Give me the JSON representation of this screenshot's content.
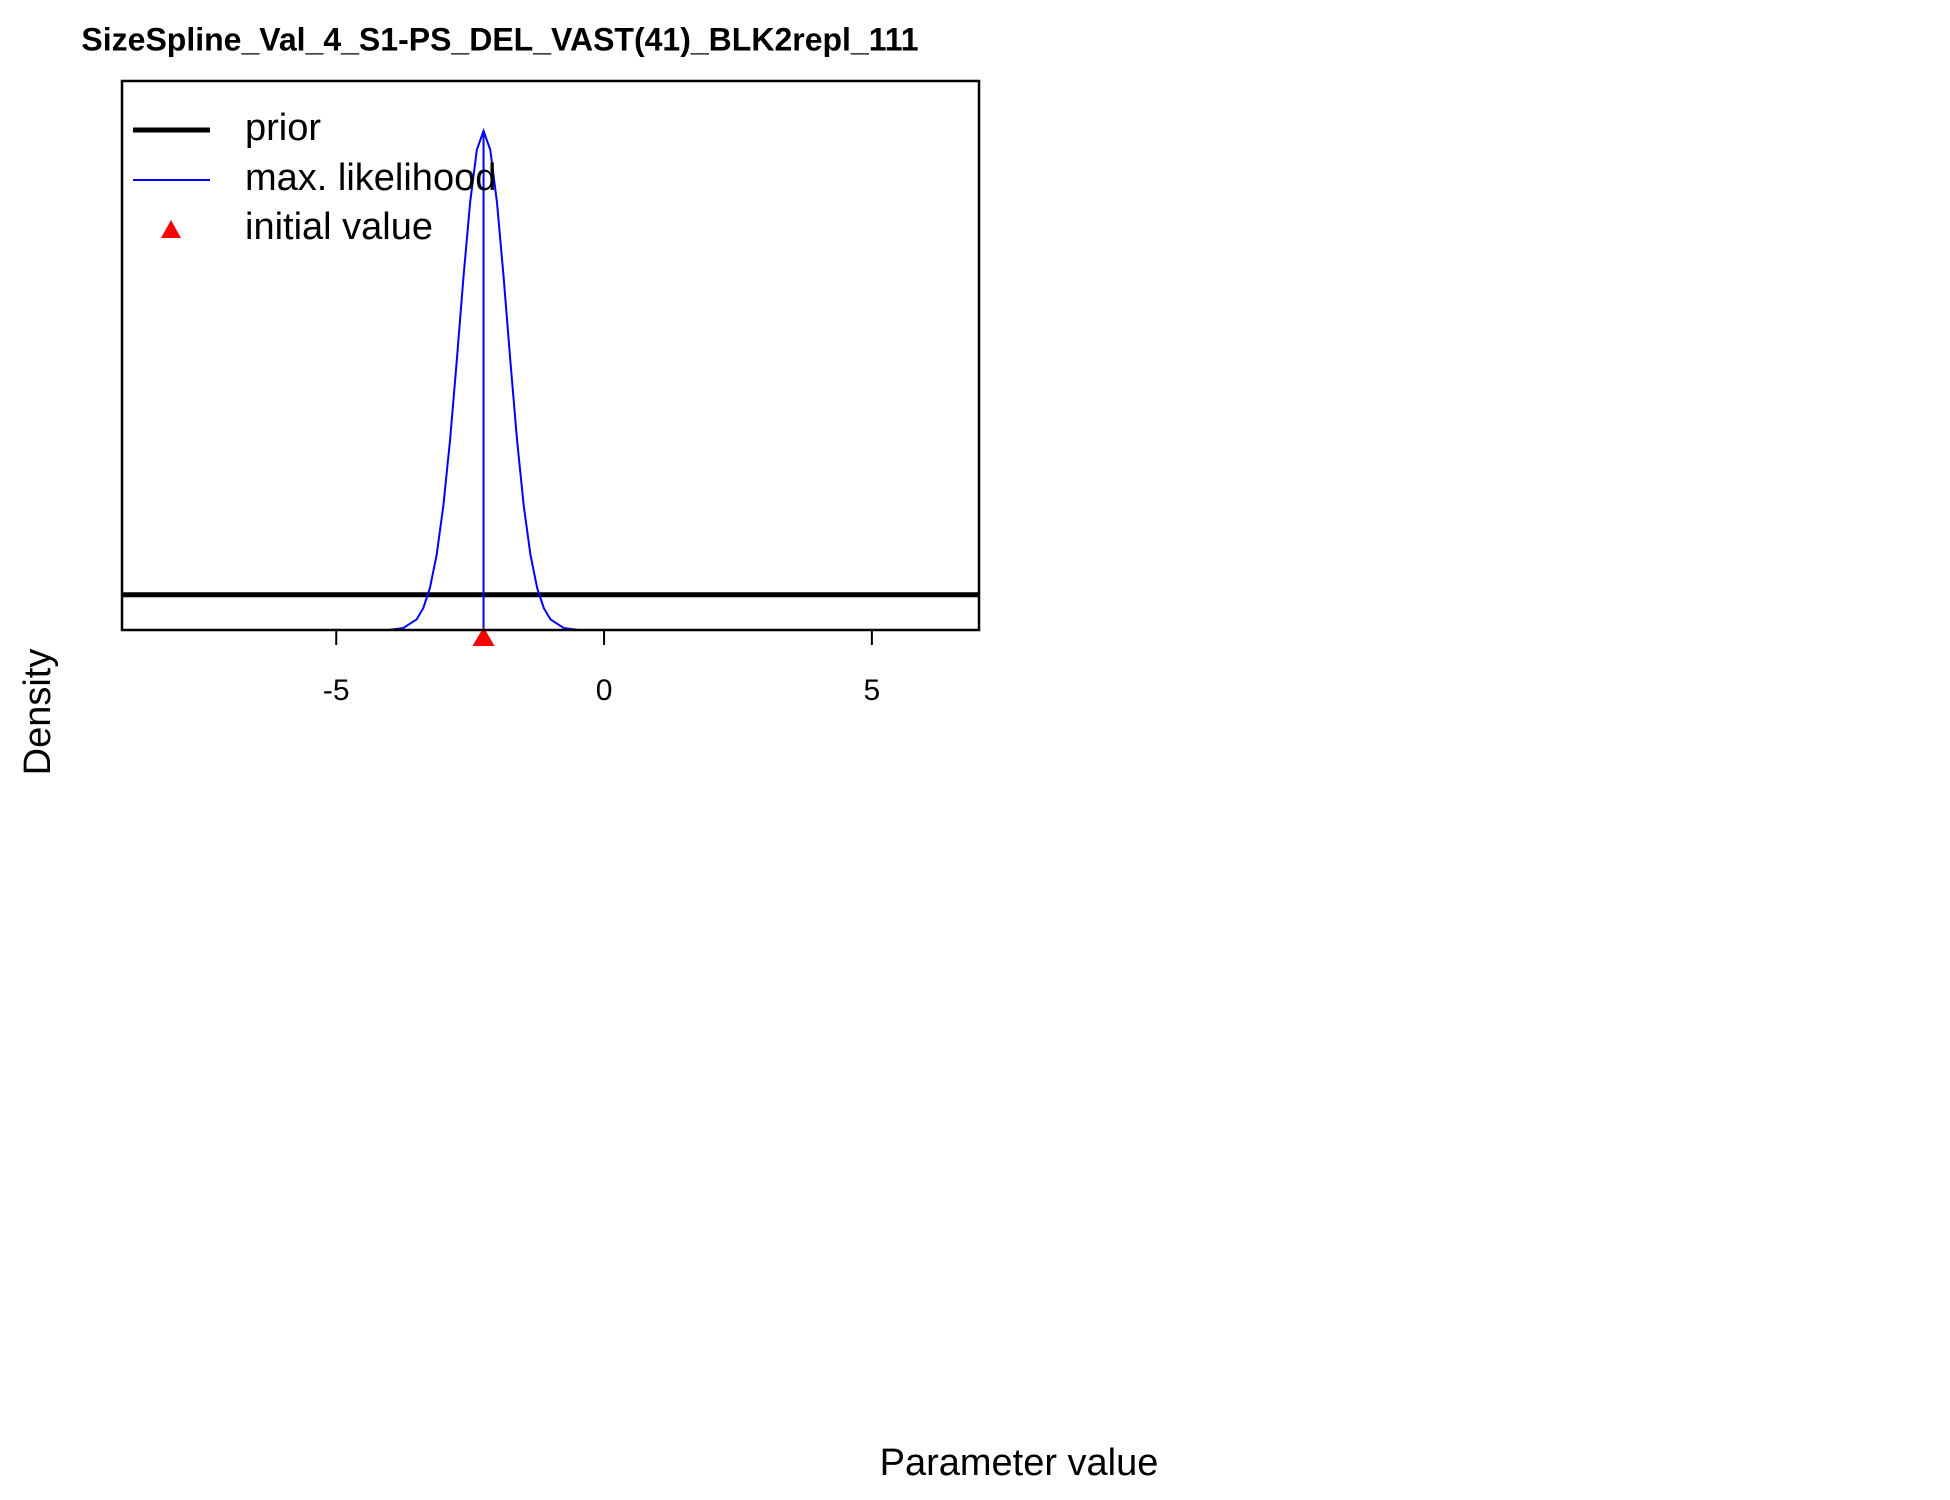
{
  "chart_data": {
    "type": "line",
    "title": "SizeSpline_Val_4_S1-PS_DEL_VAST(41)_BLK2repl_111",
    "xlabel": "Parameter value",
    "ylabel": "Density",
    "xlim": [
      -9,
      7
    ],
    "xticks": [
      -5,
      0,
      5
    ],
    "ylim": [
      0,
      0.975
    ],
    "series": [
      {
        "name": "prior",
        "color": "#000000",
        "width": 5,
        "x": [
          -9,
          7
        ],
        "values": [
          0.0625,
          0.0625
        ]
      },
      {
        "name": "max. likelihood",
        "color": "#0000ff",
        "width": 2,
        "x": [
          -4,
          -3.75,
          -3.5,
          -3.375,
          -3.25,
          -3.125,
          -3,
          -2.875,
          -2.75,
          -2.625,
          -2.5,
          -2.375,
          -2.25,
          -2.125,
          -2,
          -1.875,
          -1.75,
          -1.625,
          -1.5,
          -1.375,
          -1.25,
          -1.125,
          -1,
          -0.75,
          -0.5
        ],
        "values": [
          0.00046,
          0.0034,
          0.0187,
          0.0389,
          0.0751,
          0.1339,
          0.2211,
          0.3378,
          0.4783,
          0.6265,
          0.7599,
          0.8529,
          0.8865,
          0.8529,
          0.7599,
          0.6265,
          0.4783,
          0.3378,
          0.2211,
          0.1339,
          0.0751,
          0.0389,
          0.0187,
          0.0034,
          0.00046
        ]
      }
    ],
    "mle_x": -2.25,
    "initial_value": {
      "name": "initial value",
      "color": "#ff0000",
      "x": -2.25
    }
  }
}
